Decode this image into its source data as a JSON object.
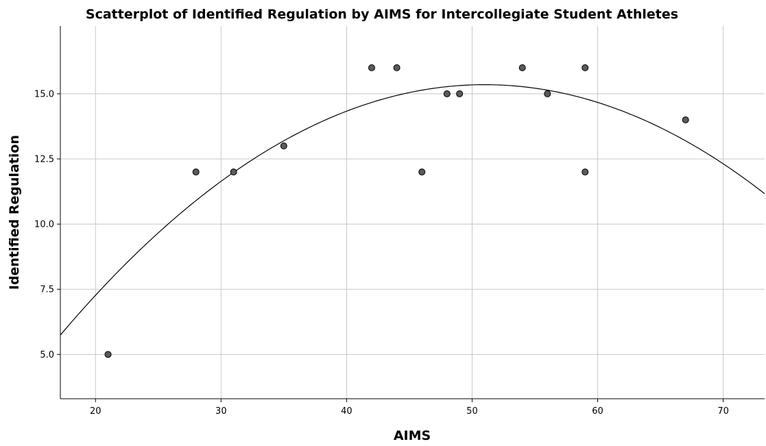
{
  "chart_data": {
    "type": "scatter",
    "title": "Scatterplot of Identified Regulation by AIMS for Intercollegiate Student Athletes",
    "xlabel": "AIMS",
    "ylabel": "Identified Regulation",
    "xlim": [
      17.2,
      73.3
    ],
    "ylim": [
      3.3,
      17.6
    ],
    "x_ticks": [
      "20",
      "30",
      "40",
      "50",
      "60",
      "70"
    ],
    "y_ticks": [
      "5.0",
      "7.5",
      "10.0",
      "12.5",
      "15.0"
    ],
    "grid": true,
    "points": [
      {
        "x": 21,
        "y": 5
      },
      {
        "x": 28,
        "y": 12
      },
      {
        "x": 31,
        "y": 12
      },
      {
        "x": 35,
        "y": 13
      },
      {
        "x": 42,
        "y": 16
      },
      {
        "x": 44,
        "y": 16
      },
      {
        "x": 46,
        "y": 12
      },
      {
        "x": 48,
        "y": 15
      },
      {
        "x": 49,
        "y": 15
      },
      {
        "x": 54,
        "y": 16
      },
      {
        "x": 56,
        "y": 15
      },
      {
        "x": 59,
        "y": 16
      },
      {
        "x": 59,
        "y": 12
      },
      {
        "x": 67,
        "y": 14
      }
    ],
    "fit_line": {
      "type": "quadratic",
      "vertex": [
        51.0,
        15.35
      ],
      "coef_a": -0.00841
    }
  }
}
